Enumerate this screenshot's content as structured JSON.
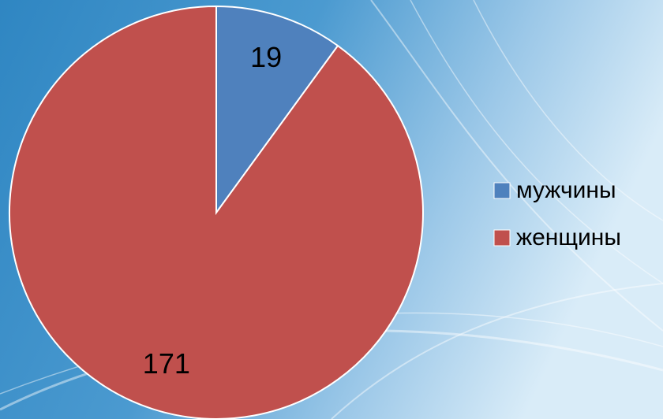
{
  "chart_data": {
    "type": "pie",
    "categories": [
      "мужчины",
      "женщины"
    ],
    "values": [
      19,
      171
    ],
    "colors": [
      "#4f81bd",
      "#c0504d"
    ],
    "legend": "right"
  }
}
